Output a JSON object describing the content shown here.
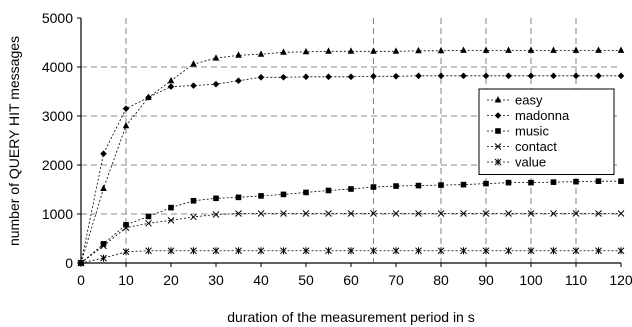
{
  "chart_data": {
    "type": "line",
    "title": "",
    "xlabel": "duration of the measurement period in s",
    "ylabel": "number of QUERY HIT messages",
    "xlim": [
      0,
      120
    ],
    "ylim": [
      0,
      5000
    ],
    "x_ticks": [
      0,
      10,
      20,
      30,
      40,
      50,
      60,
      70,
      80,
      90,
      100,
      110,
      120
    ],
    "y_ticks": [
      0,
      1000,
      2000,
      3000,
      4000,
      5000
    ],
    "grid": {
      "horizontal": [
        1000,
        2000,
        3000,
        4000
      ],
      "vertical": [
        10,
        65,
        80,
        90,
        100,
        110
      ],
      "style": "dashed"
    },
    "legend_position": "right",
    "x": [
      0,
      5,
      10,
      15,
      20,
      25,
      30,
      35,
      40,
      45,
      50,
      55,
      60,
      65,
      70,
      75,
      80,
      85,
      90,
      95,
      100,
      105,
      110,
      115,
      120
    ],
    "series": [
      {
        "name": "easy",
        "marker": "triangle",
        "values": [
          0,
          1520,
          2800,
          3380,
          3720,
          4060,
          4180,
          4240,
          4260,
          4300,
          4310,
          4320,
          4320,
          4320,
          4320,
          4330,
          4330,
          4340,
          4340,
          4340,
          4340,
          4340,
          4340,
          4340,
          4340
        ]
      },
      {
        "name": "madonna",
        "marker": "diamond",
        "values": [
          0,
          2230,
          3150,
          3380,
          3600,
          3620,
          3650,
          3720,
          3790,
          3790,
          3800,
          3800,
          3800,
          3810,
          3810,
          3820,
          3820,
          3820,
          3820,
          3820,
          3820,
          3820,
          3820,
          3820,
          3820
        ]
      },
      {
        "name": "music",
        "marker": "square",
        "values": [
          0,
          390,
          780,
          950,
          1130,
          1270,
          1320,
          1340,
          1370,
          1400,
          1440,
          1480,
          1510,
          1550,
          1570,
          1580,
          1590,
          1600,
          1620,
          1640,
          1640,
          1650,
          1660,
          1670,
          1670
        ]
      },
      {
        "name": "contact",
        "marker": "x",
        "values": [
          0,
          350,
          720,
          810,
          870,
          940,
          990,
          1010,
          1010,
          1010,
          1010,
          1010,
          1010,
          1010,
          1010,
          1010,
          1010,
          1010,
          1010,
          1010,
          1010,
          1010,
          1010,
          1010,
          1010
        ]
      },
      {
        "name": "value",
        "marker": "asterisk",
        "values": [
          0,
          100,
          230,
          250,
          250,
          250,
          250,
          250,
          250,
          250,
          250,
          250,
          250,
          250,
          250,
          250,
          250,
          250,
          250,
          250,
          250,
          250,
          250,
          250,
          250
        ]
      }
    ]
  }
}
